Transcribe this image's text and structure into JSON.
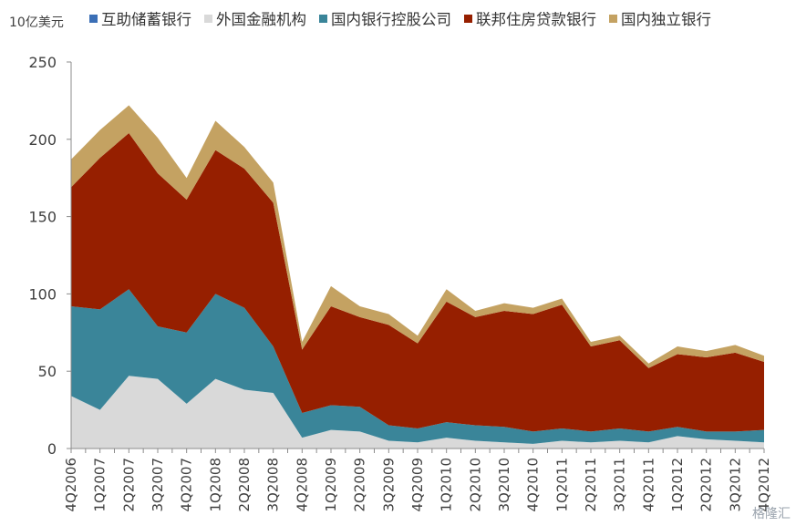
{
  "unit_label": "10亿美元",
  "watermark": "格隆汇",
  "chart_data": {
    "type": "area",
    "stacked": true,
    "ylabel": "10亿美元",
    "ylim": [
      0,
      250
    ],
    "yticks": [
      0,
      50,
      100,
      150,
      200,
      250
    ],
    "grid": false,
    "legend_position": "top",
    "categories": [
      "4Q2006",
      "1Q2007",
      "2Q2007",
      "3Q2007",
      "4Q2007",
      "1Q2008",
      "2Q2008",
      "3Q2008",
      "4Q2008",
      "1Q2009",
      "2Q2009",
      "3Q2009",
      "4Q2009",
      "1Q2010",
      "2Q2010",
      "3Q2010",
      "4Q2010",
      "1Q2011",
      "2Q2011",
      "3Q2011",
      "4Q2011",
      "1Q2012",
      "2Q2012",
      "3Q2012",
      "4Q2012"
    ],
    "axis_labels": [
      "4Q2006",
      "",
      "1Q2007",
      "",
      "2Q2007",
      "",
      "3Q2007",
      "",
      "4Q2007",
      "",
      "1Q2008",
      "",
      "2Q2008",
      "",
      "3Q2008",
      "",
      "4Q2008",
      "",
      "1Q2009",
      "",
      "2Q2009",
      "",
      "3Q2009",
      "",
      "4Q2009",
      "",
      "1Q2010",
      "",
      "2Q2010",
      "",
      "3Q2010",
      "",
      "4Q2010",
      "",
      "1Q2011",
      "",
      "2Q2011",
      "",
      "3Q2011",
      "",
      "4Q2011",
      "",
      "1Q2012",
      "",
      "2Q2012",
      "",
      "3Q2012",
      "",
      "4Q2012"
    ],
    "series": [
      {
        "name": "互助储蓄银行",
        "color": "#3b6fb6",
        "values": [
          0,
          0,
          0,
          0,
          0,
          0,
          0,
          0,
          0,
          0,
          0,
          0,
          0,
          0,
          0,
          0,
          0,
          0,
          0,
          0,
          0,
          0,
          0,
          0,
          0
        ]
      },
      {
        "name": "外国金融机构",
        "color": "#d9d9d9",
        "values": [
          34,
          25,
          47,
          45,
          29,
          45,
          38,
          36,
          7,
          12,
          11,
          5,
          4,
          7,
          5,
          4,
          3,
          5,
          4,
          5,
          4,
          8,
          6,
          5,
          4
        ]
      },
      {
        "name": "国内银行控股公司",
        "color": "#3a8599",
        "values": [
          58,
          65,
          56,
          34,
          46,
          55,
          53,
          30,
          16,
          16,
          16,
          10,
          9,
          10,
          10,
          10,
          8,
          8,
          7,
          8,
          7,
          6,
          5,
          6,
          8
        ]
      },
      {
        "name": "联邦住房贷款银行",
        "color": "#961f00",
        "values": [
          77,
          98,
          101,
          99,
          86,
          93,
          90,
          93,
          41,
          64,
          58,
          65,
          55,
          78,
          70,
          75,
          76,
          80,
          55,
          57,
          41,
          47,
          48,
          51,
          44
        ]
      },
      {
        "name": "国内独立银行",
        "color": "#c4a262",
        "values": [
          18,
          18,
          18,
          23,
          14,
          19,
          14,
          13,
          5,
          13,
          7,
          7,
          5,
          8,
          4,
          5,
          4,
          4,
          3,
          3,
          3,
          5,
          4,
          5,
          4
        ]
      }
    ]
  }
}
